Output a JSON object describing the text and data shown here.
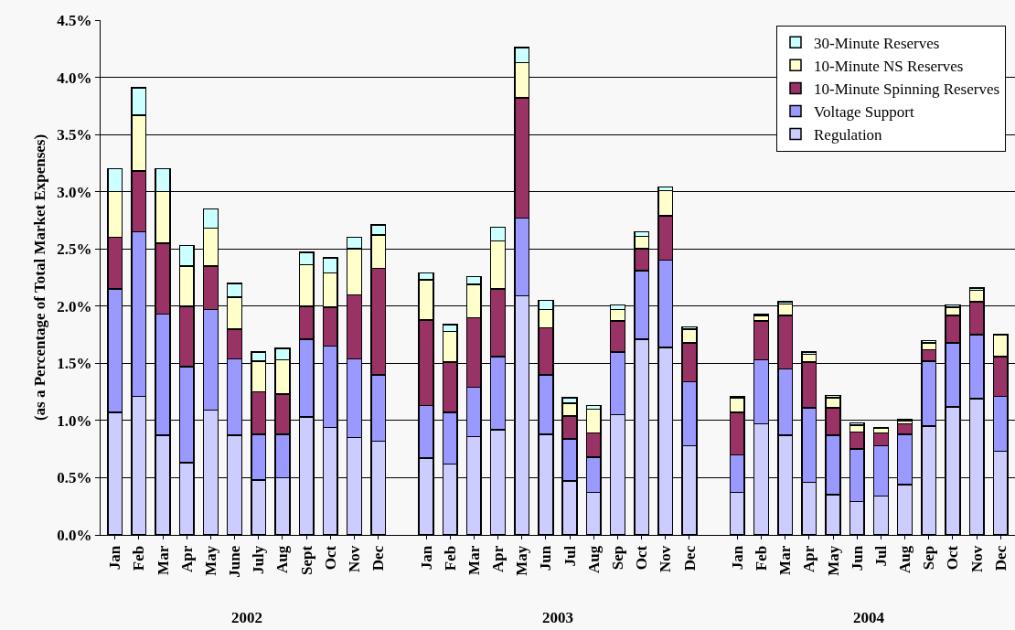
{
  "chart_data": {
    "type": "bar",
    "stacked": true,
    "ylabel": "(as a Percentage of Total Market Expenses)",
    "categories": [
      "Jan",
      "Feb",
      "Mar",
      "Apr",
      "May",
      "June",
      "July",
      "Aug",
      "Sept",
      "Oct",
      "Nov",
      "Dec",
      null,
      "Jan",
      "Feb",
      "Mar",
      "Apr",
      "May",
      "Jun",
      "Jul",
      "Aug",
      "Sep",
      "Oct",
      "Nov",
      "Dec",
      null,
      "Jan",
      "Feb",
      "Mar",
      "Apr",
      "May",
      "Jun",
      "Jul",
      "Aug",
      "Sep",
      "Oct",
      "Nov",
      "Dec"
    ],
    "series": [
      {
        "name": "Regulation",
        "color": "#ccccff",
        "values": [
          1.07,
          1.21,
          0.87,
          0.63,
          1.09,
          0.87,
          0.48,
          0.5,
          1.03,
          0.94,
          0.85,
          0.82,
          null,
          0.67,
          0.62,
          0.86,
          0.92,
          2.09,
          0.88,
          0.47,
          0.37,
          1.05,
          1.71,
          1.64,
          0.78,
          null,
          0.37,
          0.97,
          0.87,
          0.46,
          0.35,
          0.29,
          0.34,
          0.44,
          0.95,
          1.12,
          1.19,
          0.73
        ]
      },
      {
        "name": "Voltage Support",
        "color": "#9999ff",
        "values": [
          1.08,
          1.44,
          1.06,
          0.84,
          0.88,
          0.67,
          0.4,
          0.38,
          0.68,
          0.71,
          0.69,
          0.58,
          null,
          0.46,
          0.45,
          0.43,
          0.64,
          0.68,
          0.52,
          0.37,
          0.31,
          0.55,
          0.6,
          0.76,
          0.56,
          null,
          0.33,
          0.56,
          0.58,
          0.65,
          0.52,
          0.46,
          0.44,
          0.44,
          0.57,
          0.56,
          0.56,
          0.48
        ]
      },
      {
        "name": "10-Minute Spinning Reserves",
        "color": "#993366",
        "values": [
          0.45,
          0.53,
          0.62,
          0.53,
          0.38,
          0.26,
          0.37,
          0.35,
          0.29,
          0.34,
          0.56,
          0.93,
          null,
          0.75,
          0.44,
          0.61,
          0.59,
          1.05,
          0.41,
          0.2,
          0.21,
          0.27,
          0.19,
          0.39,
          0.34,
          null,
          0.37,
          0.34,
          0.47,
          0.4,
          0.24,
          0.15,
          0.11,
          0.09,
          0.1,
          0.24,
          0.29,
          0.35
        ]
      },
      {
        "name": "10-Minute NS Reserves",
        "color": "#ffffcc",
        "values": [
          0.4,
          0.49,
          0.45,
          0.35,
          0.33,
          0.28,
          0.27,
          0.3,
          0.36,
          0.3,
          0.4,
          0.29,
          null,
          0.35,
          0.27,
          0.29,
          0.42,
          0.31,
          0.16,
          0.11,
          0.21,
          0.1,
          0.11,
          0.22,
          0.12,
          null,
          0.13,
          0.05,
          0.1,
          0.07,
          0.09,
          0.06,
          0.04,
          0.03,
          0.06,
          0.07,
          0.1,
          0.19
        ]
      },
      {
        "name": "30-Minute Reserves",
        "color": "#ccffff",
        "values": [
          0.2,
          0.24,
          0.2,
          0.18,
          0.17,
          0.12,
          0.08,
          0.1,
          0.11,
          0.13,
          0.1,
          0.09,
          null,
          0.06,
          0.06,
          0.07,
          0.12,
          0.13,
          0.08,
          0.05,
          0.03,
          0.04,
          0.04,
          0.03,
          0.02,
          null,
          0.01,
          0.01,
          0.02,
          0.02,
          0.02,
          0.02,
          0.01,
          0.01,
          0.02,
          0.02,
          0.02,
          null
        ]
      }
    ],
    "ylim": [
      0,
      4.5
    ],
    "yticks": [
      {
        "value": 0,
        "label": "0.0%"
      },
      {
        "value": 0.5,
        "label": "0.5%"
      },
      {
        "value": 1,
        "label": "1.0%"
      },
      {
        "value": 1.5,
        "label": "1.5%"
      },
      {
        "value": 2,
        "label": "2.0%"
      },
      {
        "value": 2.5,
        "label": "2.5%"
      },
      {
        "value": 3,
        "label": "3.0%"
      },
      {
        "value": 3.5,
        "label": "3.5%"
      },
      {
        "value": 4,
        "label": "4.0%"
      },
      {
        "value": 4.5,
        "label": "4.5%"
      }
    ],
    "annotations": [
      "2002",
      "2003",
      "2004"
    ],
    "grid": "y",
    "legend": "top right"
  }
}
